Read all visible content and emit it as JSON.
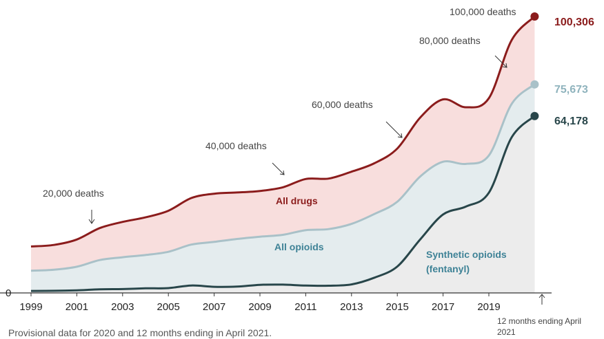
{
  "chart_data": {
    "type": "area",
    "x": [
      1999,
      2000,
      2001,
      2002,
      2003,
      2004,
      2005,
      2006,
      2007,
      2008,
      2009,
      2010,
      2011,
      2012,
      2013,
      2014,
      2015,
      2016,
      2017,
      2018,
      2019,
      2020,
      2021
    ],
    "x_tick_labels": [
      "1999",
      "2001",
      "2003",
      "2005",
      "2007",
      "2009",
      "2011",
      "2013",
      "2015",
      "2017",
      "2019"
    ],
    "x_end_label": "12 months ending April 2021",
    "y_tick_labels": [
      "0"
    ],
    "ylim": [
      0,
      100306
    ],
    "series": [
      {
        "name": "All drugs",
        "color": "#8b1c1c",
        "fill": "#f8dedd",
        "end_value": "100,306",
        "values": [
          16849,
          17415,
          19394,
          23518,
          25785,
          27424,
          29813,
          34425,
          36010,
          36450,
          37004,
          38329,
          41340,
          41502,
          43982,
          47055,
          52404,
          63632,
          70237,
          67367,
          70630,
          91799,
          100306
        ]
      },
      {
        "name": "All opioids",
        "color": "#a9c1c8",
        "fill": "#e4ecee",
        "end_value": "75,673",
        "values": [
          8050,
          8407,
          9496,
          11920,
          12940,
          13756,
          14918,
          17545,
          18516,
          19582,
          20422,
          21089,
          22784,
          23166,
          25052,
          28647,
          33091,
          42249,
          47600,
          46802,
          49860,
          68630,
          75673
        ]
      },
      {
        "name": "Synthetic opioids (fentanyl)",
        "color": "#28464a",
        "fill": "#ececec",
        "end_value": "64,178",
        "values": [
          730,
          782,
          957,
          1295,
          1400,
          1664,
          1742,
          2707,
          2213,
          2306,
          2946,
          3007,
          2666,
          2628,
          3105,
          5544,
          9580,
          19413,
          28466,
          31335,
          36359,
          56516,
          64178
        ]
      }
    ],
    "annotations": [
      "20,000 deaths",
      "40,000 deaths",
      "60,000 deaths",
      "80,000 deaths",
      "100,000 deaths"
    ],
    "series_labels": {
      "all_drugs": "All drugs",
      "all_opioids": "All opioids",
      "synthetic_line1": "Synthetic opioids",
      "synthetic_line2": "(fentanyl)"
    },
    "grid": false
  },
  "footnote": "Provisional data for 2020 and 12 months ending in April 2021.",
  "end_note_line1": "12 months ending April",
  "end_note_line2": "2021"
}
